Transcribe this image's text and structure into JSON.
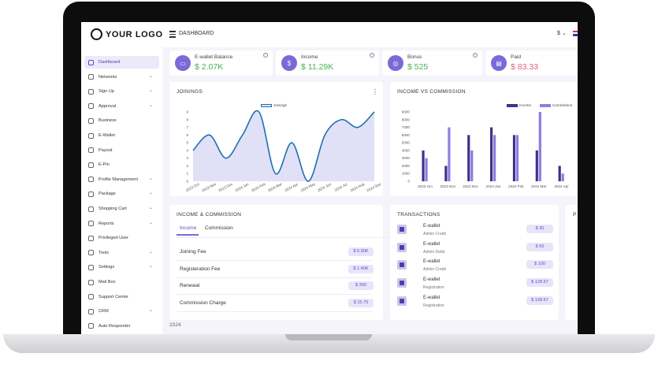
{
  "header": {
    "logo_text": "YOUR LOGO",
    "title": "DASHBOARD",
    "currency": "$ ⌄"
  },
  "sidebar": {
    "items": [
      {
        "label": "Dashboard",
        "icon": "home-icon",
        "chevron": ""
      },
      {
        "label": "Networks",
        "icon": "network-icon",
        "chevron": "⌄"
      },
      {
        "label": "Sign Up",
        "icon": "user-plus-icon",
        "chevron": "⌄"
      },
      {
        "label": "Approval",
        "icon": "user-check-icon",
        "chevron": "⌄"
      },
      {
        "label": "Business",
        "icon": "briefcase-icon",
        "chevron": ""
      },
      {
        "label": "E-Wallet",
        "icon": "wallet-icon",
        "chevron": ""
      },
      {
        "label": "Payout",
        "icon": "payout-icon",
        "chevron": ""
      },
      {
        "label": "E-Pin",
        "icon": "pin-icon",
        "chevron": ""
      },
      {
        "label": "Profile Management",
        "icon": "profile-icon",
        "chevron": "⌄"
      },
      {
        "label": "Package",
        "icon": "package-icon",
        "chevron": "⌄"
      },
      {
        "label": "Shopping Cart",
        "icon": "cart-icon",
        "chevron": "⌄"
      },
      {
        "label": "Reports",
        "icon": "reports-icon",
        "chevron": "⌄"
      },
      {
        "label": "Privileged User",
        "icon": "privileged-user-icon",
        "chevron": ""
      },
      {
        "label": "Tools",
        "icon": "tools-icon",
        "chevron": "⌄"
      },
      {
        "label": "Settings",
        "icon": "settings-icon",
        "chevron": "⌄"
      },
      {
        "label": "Mail Box",
        "icon": "mail-icon",
        "chevron": ""
      },
      {
        "label": "Support Center",
        "icon": "support-icon",
        "chevron": ""
      },
      {
        "label": "CRM",
        "icon": "crm-icon",
        "chevron": "⌄"
      },
      {
        "label": "Auto Responder",
        "icon": "responder-icon",
        "chevron": ""
      }
    ]
  },
  "stats": [
    {
      "label": "E-wallet Balance",
      "value": "$ 2.07K",
      "color": "#4caf50",
      "icon": "wallet-icon"
    },
    {
      "label": "Income",
      "value": "$ 11.29K",
      "color": "#4caf50",
      "icon": "income-bag-icon"
    },
    {
      "label": "Bonus",
      "value": "$ 525",
      "color": "#4caf50",
      "icon": "coin-icon"
    },
    {
      "label": "Paid",
      "value": "$ 83.33",
      "color": "#e85d8a",
      "icon": "card-icon"
    }
  ],
  "accent_color": "#7a6ad8",
  "joinings": {
    "title": "JOININGS",
    "chart_data": {
      "type": "area",
      "categories": [
        "2023 Oct",
        "2023 Nov",
        "2023 Dec",
        "2024 Jan",
        "2024 Feb",
        "2024 Mar",
        "2024 Apr",
        "2024 May",
        "2024 Jun",
        "2024 Jul",
        "2024 Aug",
        "2024 Sep"
      ],
      "series": [
        {
          "name": "Joinings",
          "values": [
            4,
            6,
            3,
            6,
            9,
            1,
            5,
            0,
            6,
            8,
            7,
            9
          ]
        }
      ],
      "yticks": [
        0,
        1,
        2,
        3,
        4,
        5,
        6,
        7,
        8,
        9
      ],
      "ylim": [
        0,
        9
      ],
      "legend": "top-center",
      "colors": {
        "line": "#1f6fae",
        "fill": "#e0e1f7"
      }
    }
  },
  "income_vs_commission": {
    "title": "INCOME VS COMMISSION",
    "chart_data": {
      "type": "bar",
      "categories": [
        "2023 Oct",
        "2023 Nov",
        "2023 Dec",
        "2024 Jan",
        "2024 Feb",
        "2024 Mar",
        "2024 Apr"
      ],
      "series": [
        {
          "name": "Income",
          "values": [
            4000,
            2000,
            6000,
            7000,
            6000,
            4000,
            2000
          ],
          "color": "#3d3287"
        },
        {
          "name": "Commission",
          "values": [
            3000,
            7000,
            4000,
            6000,
            6000,
            9000,
            1000
          ],
          "color": "#8b7fe0"
        }
      ],
      "yticks": [
        0,
        1000,
        2000,
        3000,
        4000,
        5000,
        6000,
        7000,
        8000,
        9000
      ],
      "ylim": [
        0,
        9000
      ],
      "legend": "top-right"
    }
  },
  "income_commission": {
    "title": "INCOME & COMMISSION",
    "tabs": [
      "Income",
      "Commission"
    ],
    "rows": [
      {
        "label": "Joining Fee",
        "amount": "$ 5.90K"
      },
      {
        "label": "Registeration Fee",
        "amount": "$ 1.40K"
      },
      {
        "label": "Renewal",
        "amount": "$ 300"
      },
      {
        "label": "Commission Charge",
        "amount": "$ 15.75"
      }
    ]
  },
  "transactions": {
    "title": "TRANSACTIONS",
    "items": [
      {
        "title": "E-wallet",
        "subtitle": "Admin Credit",
        "amount": "$ 30"
      },
      {
        "title": "E-wallet",
        "subtitle": "Admin Debit",
        "amount": "$ 50"
      },
      {
        "title": "E-wallet",
        "subtitle": "Admin Credit",
        "amount": "$ 100"
      },
      {
        "title": "E-wallet",
        "subtitle": "Registration",
        "amount": "$ 128.67"
      },
      {
        "title": "E-wallet",
        "subtitle": "Registration",
        "amount": "$ 128.67"
      }
    ]
  },
  "footer": {
    "year": "2024"
  },
  "extra_panel_letter": "P"
}
